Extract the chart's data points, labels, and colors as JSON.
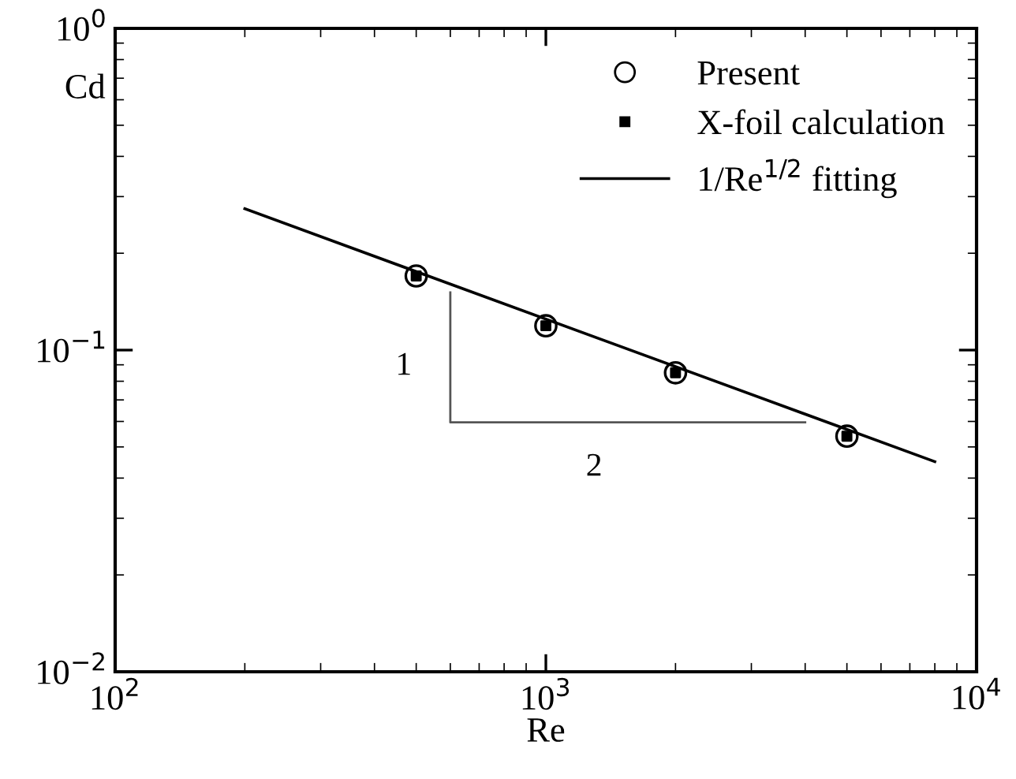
{
  "chart_data": {
    "type": "scatter",
    "xlabel": "Re",
    "ylabel": "Cd",
    "log": "xy",
    "xlim": [
      100,
      10000
    ],
    "ylim": [
      0.01,
      1
    ],
    "xticks": [
      {
        "value": 100,
        "label": "10$^{2}$"
      },
      {
        "value": 1000,
        "label": "10$^{3}$"
      },
      {
        "value": 10000,
        "label": "10$^{4}$"
      }
    ],
    "yticks": [
      {
        "value": 0.01,
        "label": "10$^{−2}$"
      },
      {
        "value": 0.1,
        "label": "10$^{−1}$"
      },
      {
        "value": 1,
        "label": "10$^{0}$"
      }
    ],
    "grid": false,
    "legend": "top right",
    "series": [
      {
        "name": "Present",
        "marker": "circle",
        "color": "#000000",
        "x": [
          500,
          1000,
          2000,
          5000
        ],
        "values": [
          0.17,
          0.119,
          0.085,
          0.054
        ]
      },
      {
        "name": "X-foil calculation",
        "marker": "square",
        "color": "#000000",
        "x": [
          500,
          1000,
          2000,
          5000
        ],
        "values": [
          0.17,
          0.119,
          0.085,
          0.054
        ]
      },
      {
        "name": "1/Re$^{1/2}$ fitting",
        "type": "line",
        "marker": "none",
        "line_style": "solid",
        "color": "#000000",
        "x": [
          200,
          8000
        ],
        "values": [
          0.275,
          0.045
        ]
      },
      {
        "type": "line",
        "marker": "none",
        "line_style": "solid",
        "color": "#555555",
        "x": [
          600,
          600,
          4000
        ],
        "values": [
          0.151,
          0.0596,
          0.0596
        ]
      }
    ],
    "annotations": [
      "1",
      "2"
    ]
  }
}
